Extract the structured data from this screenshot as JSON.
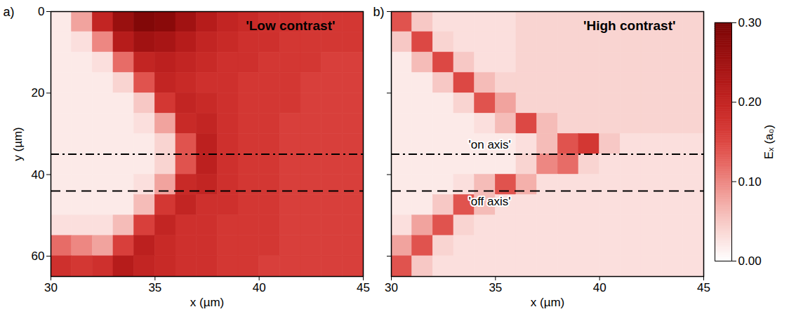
{
  "chart_data": [
    {
      "type": "heatmap",
      "panel": "a)",
      "title": "'Low contrast'",
      "xlabel": "x (µm)",
      "ylabel": "y (µm)",
      "xlim": [
        30,
        45
      ],
      "ylim": [
        65,
        0
      ],
      "xticks": [
        30,
        35,
        40,
        45
      ],
      "yticks": [
        0,
        20,
        40,
        60
      ],
      "x_edges": [
        30,
        31,
        32,
        33,
        34,
        35,
        36,
        37,
        38,
        39,
        40,
        41,
        42,
        43,
        44,
        45
      ],
      "y_edges": [
        0,
        5,
        10,
        15,
        20,
        25,
        30,
        35,
        40,
        45,
        50,
        55,
        60,
        65
      ],
      "cells": [
        [
          0.02,
          0.08,
          0.2,
          0.26,
          0.29,
          0.28,
          0.25,
          0.22,
          0.2,
          0.19,
          0.18,
          0.18,
          0.17,
          0.17,
          0.17
        ],
        [
          0.02,
          0.03,
          0.1,
          0.22,
          0.25,
          0.24,
          0.22,
          0.2,
          0.19,
          0.18,
          0.18,
          0.17,
          0.17,
          0.17,
          0.17
        ],
        [
          0.02,
          0.02,
          0.03,
          0.12,
          0.2,
          0.21,
          0.2,
          0.19,
          0.18,
          0.18,
          0.17,
          0.17,
          0.17,
          0.16,
          0.16
        ],
        [
          0.02,
          0.02,
          0.02,
          0.04,
          0.14,
          0.2,
          0.19,
          0.18,
          0.18,
          0.17,
          0.17,
          0.17,
          0.16,
          0.16,
          0.16
        ],
        [
          0.02,
          0.02,
          0.02,
          0.02,
          0.05,
          0.17,
          0.2,
          0.19,
          0.18,
          0.17,
          0.17,
          0.17,
          0.16,
          0.16,
          0.16
        ],
        [
          0.02,
          0.02,
          0.02,
          0.02,
          0.03,
          0.08,
          0.19,
          0.2,
          0.18,
          0.17,
          0.17,
          0.16,
          0.16,
          0.16,
          0.16
        ],
        [
          0.02,
          0.02,
          0.02,
          0.02,
          0.02,
          0.04,
          0.14,
          0.21,
          0.18,
          0.17,
          0.17,
          0.16,
          0.16,
          0.16,
          0.16
        ],
        [
          0.02,
          0.02,
          0.02,
          0.02,
          0.02,
          0.04,
          0.14,
          0.21,
          0.18,
          0.17,
          0.17,
          0.16,
          0.16,
          0.16,
          0.16
        ],
        [
          0.02,
          0.02,
          0.02,
          0.02,
          0.03,
          0.08,
          0.19,
          0.2,
          0.18,
          0.17,
          0.17,
          0.16,
          0.16,
          0.16,
          0.16
        ],
        [
          0.02,
          0.02,
          0.02,
          0.02,
          0.06,
          0.17,
          0.2,
          0.18,
          0.18,
          0.17,
          0.17,
          0.16,
          0.16,
          0.16,
          0.16
        ],
        [
          0.03,
          0.03,
          0.03,
          0.06,
          0.16,
          0.2,
          0.18,
          0.18,
          0.17,
          0.17,
          0.17,
          0.16,
          0.16,
          0.16,
          0.16
        ],
        [
          0.12,
          0.1,
          0.08,
          0.16,
          0.21,
          0.19,
          0.18,
          0.18,
          0.17,
          0.17,
          0.17,
          0.16,
          0.16,
          0.16,
          0.16
        ],
        [
          0.18,
          0.17,
          0.18,
          0.22,
          0.2,
          0.19,
          0.18,
          0.18,
          0.17,
          0.17,
          0.16,
          0.16,
          0.16,
          0.16,
          0.16
        ]
      ],
      "lines": [
        {
          "y": 35,
          "line_style": "dashdot"
        },
        {
          "y": 44,
          "line_style": "dashed"
        }
      ]
    },
    {
      "type": "heatmap",
      "panel": "b)",
      "title": "'High contrast'",
      "xlabel": "x (µm)",
      "tick_labels": "x",
      "xlim": [
        30,
        45
      ],
      "ylim": [
        65,
        0
      ],
      "xticks": [
        30,
        35,
        40,
        45
      ],
      "yticks": [
        0,
        20,
        40,
        60
      ],
      "x_edges": [
        30,
        31,
        32,
        33,
        34,
        35,
        36,
        37,
        38,
        39,
        40,
        41,
        42,
        43,
        44,
        45
      ],
      "y_edges": [
        0,
        5,
        10,
        15,
        20,
        25,
        30,
        35,
        40,
        45,
        50,
        55,
        60,
        65
      ],
      "cells": [
        [
          0.14,
          0.05,
          0.03,
          0.03,
          0.03,
          0.03,
          0.04,
          0.04,
          0.04,
          0.04,
          0.04,
          0.04,
          0.04,
          0.04,
          0.04
        ],
        [
          0.05,
          0.15,
          0.04,
          0.03,
          0.03,
          0.03,
          0.04,
          0.04,
          0.04,
          0.04,
          0.04,
          0.04,
          0.04,
          0.04,
          0.04
        ],
        [
          0.02,
          0.06,
          0.15,
          0.05,
          0.03,
          0.03,
          0.04,
          0.04,
          0.04,
          0.04,
          0.04,
          0.04,
          0.04,
          0.04,
          0.04
        ],
        [
          0.02,
          0.02,
          0.05,
          0.15,
          0.06,
          0.04,
          0.04,
          0.04,
          0.04,
          0.04,
          0.04,
          0.04,
          0.04,
          0.04,
          0.04
        ],
        [
          0.02,
          0.02,
          0.02,
          0.04,
          0.14,
          0.08,
          0.04,
          0.04,
          0.04,
          0.04,
          0.04,
          0.04,
          0.04,
          0.04,
          0.04
        ],
        [
          0.02,
          0.02,
          0.02,
          0.02,
          0.03,
          0.06,
          0.15,
          0.06,
          0.04,
          0.04,
          0.04,
          0.04,
          0.04,
          0.04,
          0.04
        ],
        [
          0.02,
          0.02,
          0.02,
          0.02,
          0.02,
          0.02,
          0.03,
          0.06,
          0.14,
          0.17,
          0.05,
          0.03,
          0.03,
          0.03,
          0.03
        ],
        [
          0.02,
          0.02,
          0.02,
          0.02,
          0.02,
          0.02,
          0.04,
          0.1,
          0.12,
          0.04,
          0.03,
          0.03,
          0.03,
          0.03,
          0.03
        ],
        [
          0.02,
          0.02,
          0.02,
          0.03,
          0.06,
          0.14,
          0.07,
          0.03,
          0.03,
          0.03,
          0.03,
          0.03,
          0.03,
          0.03,
          0.03
        ],
        [
          0.02,
          0.02,
          0.05,
          0.14,
          0.06,
          0.03,
          0.03,
          0.03,
          0.03,
          0.03,
          0.03,
          0.03,
          0.03,
          0.03,
          0.03
        ],
        [
          0.03,
          0.08,
          0.14,
          0.04,
          0.03,
          0.03,
          0.03,
          0.03,
          0.03,
          0.03,
          0.03,
          0.03,
          0.03,
          0.03,
          0.03
        ],
        [
          0.08,
          0.14,
          0.04,
          0.03,
          0.03,
          0.03,
          0.03,
          0.03,
          0.03,
          0.03,
          0.03,
          0.03,
          0.03,
          0.03,
          0.03
        ],
        [
          0.14,
          0.05,
          0.03,
          0.03,
          0.03,
          0.03,
          0.03,
          0.03,
          0.03,
          0.03,
          0.03,
          0.03,
          0.03,
          0.03,
          0.03
        ]
      ],
      "lines": [
        {
          "y": 35,
          "line_style": "dashdot",
          "label": "'on axis'"
        },
        {
          "y": 44,
          "line_style": "dashed",
          "label": "'off axis'"
        }
      ],
      "colorbar": {
        "label": "Eₓ (a₀)",
        "lim": [
          0,
          0.3
        ],
        "ticks": [
          0,
          0.1,
          0.2,
          0.3
        ]
      }
    }
  ]
}
